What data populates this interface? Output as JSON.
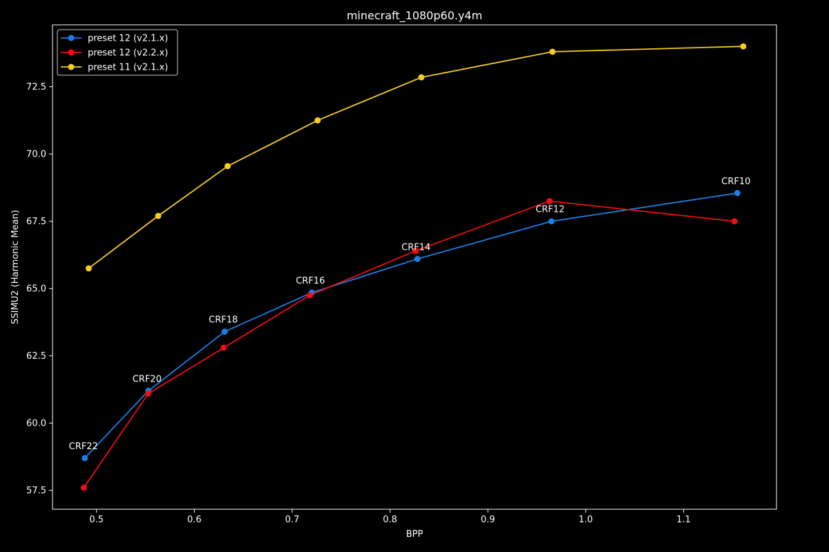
{
  "chart_data": {
    "type": "line",
    "title": "minecraft_1080p60.y4m",
    "xlabel": "BPP",
    "ylabel": "SSIMU2 (Harmonic Mean)",
    "xlim": [
      0.455,
      1.195
    ],
    "ylim": [
      56.8,
      74.8
    ],
    "xticks": [
      0.5,
      0.6,
      0.7,
      0.8,
      0.9,
      1.0,
      1.1
    ],
    "xtick_labels": [
      "0.5",
      "0.6",
      "0.7",
      "0.8",
      "0.9",
      "1.0",
      "1.1"
    ],
    "yticks": [
      57.5,
      60.0,
      62.5,
      65.0,
      67.5,
      70.0,
      72.5
    ],
    "ytick_labels": [
      "57.5",
      "60.0",
      "62.5",
      "65.0",
      "67.5",
      "70.0",
      "72.5"
    ],
    "grid": false,
    "legend_position": "top-left",
    "series": [
      {
        "name": "preset 12 (v2.1.x)",
        "color": "#1a7fe8",
        "x": [
          0.488,
          0.553,
          0.631,
          0.72,
          0.828,
          0.965,
          1.155
        ],
        "y": [
          58.7,
          61.2,
          63.4,
          64.85,
          66.1,
          67.5,
          68.55
        ]
      },
      {
        "name": "preset 12 (v2.2.x)",
        "color": "#ee0f12",
        "x": [
          0.487,
          0.553,
          0.63,
          0.718,
          0.826,
          0.963,
          1.152
        ],
        "y": [
          57.6,
          61.1,
          62.8,
          64.75,
          66.4,
          68.25,
          67.5
        ]
      },
      {
        "name": "preset 11 (v2.1.x)",
        "color": "#f6cd20",
        "x": [
          0.492,
          0.563,
          0.634,
          0.726,
          0.832,
          0.966,
          1.161
        ],
        "y": [
          65.75,
          67.7,
          69.55,
          71.25,
          72.85,
          73.8,
          74.0
        ]
      }
    ],
    "annotations": [
      {
        "text": "CRF22",
        "x": 0.488,
        "y": 58.7
      },
      {
        "text": "CRF20",
        "x": 0.553,
        "y": 61.2
      },
      {
        "text": "CRF18",
        "x": 0.631,
        "y": 63.4
      },
      {
        "text": "CRF16",
        "x": 0.72,
        "y": 64.85
      },
      {
        "text": "CRF14",
        "x": 0.828,
        "y": 66.1
      },
      {
        "text": "CRF12",
        "x": 0.965,
        "y": 67.5
      },
      {
        "text": "CRF10",
        "x": 1.155,
        "y": 68.55
      }
    ]
  }
}
